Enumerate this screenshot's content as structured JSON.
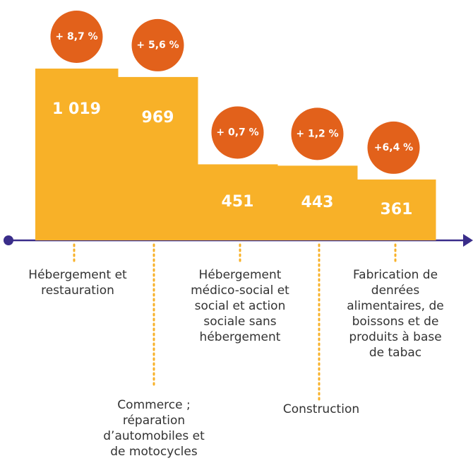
{
  "chart_data": {
    "type": "bar",
    "categories": [
      "Hébergement et restauration",
      "Commerce ; réparation d’automobiles et de motocycles",
      "Hébergement médico-social et social et action sociale sans hébergement",
      "Construction",
      "Fabrication de denrées alimentaires, de boissons et de produits à base de tabac"
    ],
    "values": [
      1019,
      969,
      451,
      443,
      361
    ],
    "value_labels": [
      "1 019",
      "969",
      "451",
      "443",
      "361"
    ],
    "growth": [
      8.7,
      5.6,
      0.7,
      1.2,
      6.4
    ],
    "growth_labels": [
      "+ 8,7 %",
      "+ 5,6 %",
      "+ 0,7 %",
      "+ 1,2 %",
      "+6,4 %"
    ],
    "color": "#f8b128",
    "growth_color": "#e2611b"
  }
}
